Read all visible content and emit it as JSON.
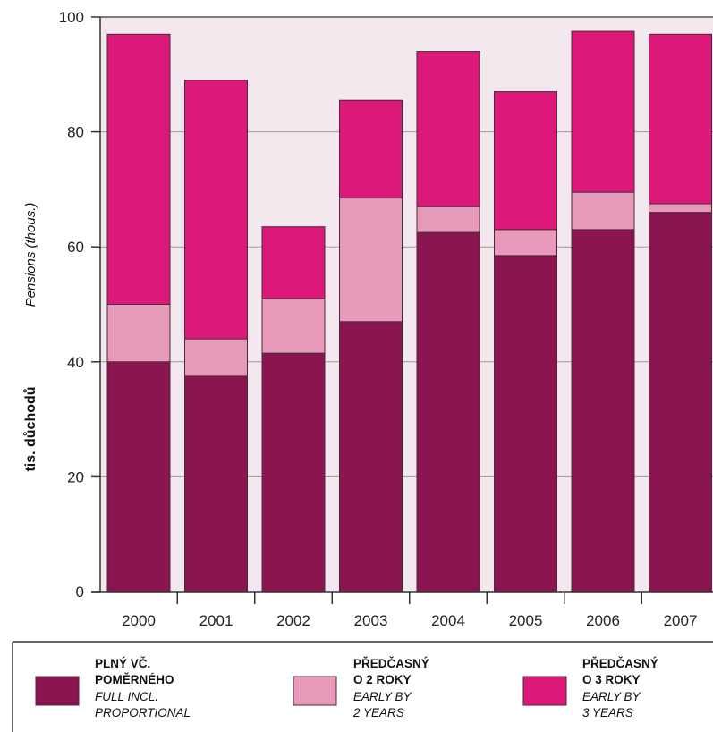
{
  "colors": {
    "plot_background": "#f2e8ee",
    "full": "#8a1550",
    "early2": "#e79ab9",
    "early3": "#dc1878",
    "axis": "#333333",
    "grid": "#9a9a9a"
  },
  "chart_data": {
    "type": "bar",
    "stacked": true,
    "categories": [
      "2000",
      "2001",
      "2002",
      "2003",
      "2004",
      "2005",
      "2006",
      "2007"
    ],
    "series": [
      {
        "key": "full",
        "values": [
          40,
          37.5,
          41.5,
          47,
          62.5,
          58.5,
          63,
          66
        ]
      },
      {
        "key": "early2",
        "values": [
          10,
          6.5,
          9.5,
          21.5,
          4.5,
          4.5,
          6.5,
          1.5
        ]
      },
      {
        "key": "early3",
        "values": [
          47,
          45,
          12.5,
          17,
          27,
          24,
          28,
          29.5
        ]
      }
    ],
    "ylabel_cz": "tis. důchodů",
    "ylabel_en": "Pensions (thous.)",
    "ylim": [
      0,
      100
    ],
    "yticks": [
      "0",
      "20",
      "40",
      "60",
      "80",
      "100"
    ],
    "grid": true,
    "legend_placement": "bottom"
  },
  "legend": {
    "items": [
      {
        "key": "full",
        "label_cz_line1": "PLNÝ VČ.",
        "label_cz_line2": "POMĚRNÉHO",
        "label_en_line1": "FULL INCL.",
        "label_en_line2": "PROPORTIONAL"
      },
      {
        "key": "early2",
        "label_cz_line1": "PŘEDČASNÝ",
        "label_cz_line2": "O 2 ROKY",
        "label_en_line1": "EARLY BY",
        "label_en_line2": "2 YEARS"
      },
      {
        "key": "early3",
        "label_cz_line1": "PŘEDČASNÝ",
        "label_cz_line2": "O 3 ROKY",
        "label_en_line1": "EARLY BY",
        "label_en_line2": "3 YEARS"
      }
    ]
  }
}
